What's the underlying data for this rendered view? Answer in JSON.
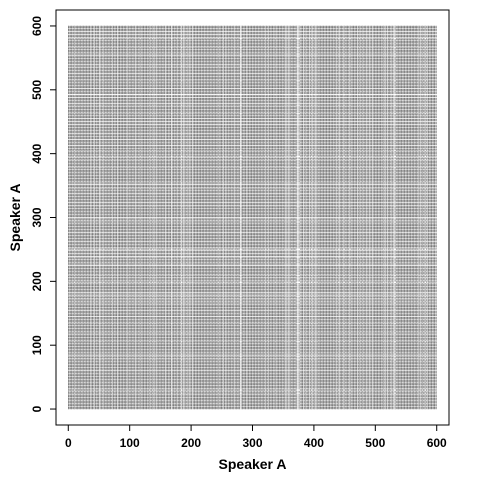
{
  "chart_data": {
    "type": "scatter",
    "title": "",
    "xlabel": "Speaker A",
    "ylabel": "Speaker A",
    "xlim": [
      -20,
      620
    ],
    "ylim": [
      -25,
      625
    ],
    "xticks": [
      0,
      100,
      200,
      300,
      400,
      500,
      600
    ],
    "yticks": [
      0,
      100,
      200,
      300,
      400,
      500,
      600
    ],
    "grid": false,
    "legend": "none",
    "n_points_per_axis": 601,
    "gap_x": [
      280,
      281,
      282,
      372,
      373,
      495
    ],
    "gap_y": [
      82,
      166,
      298,
      455,
      463,
      488
    ],
    "mark": "dense dotted recurrence pattern; point at (x, y) where both indices belong to the recurrent set",
    "point_color": "#000000"
  }
}
